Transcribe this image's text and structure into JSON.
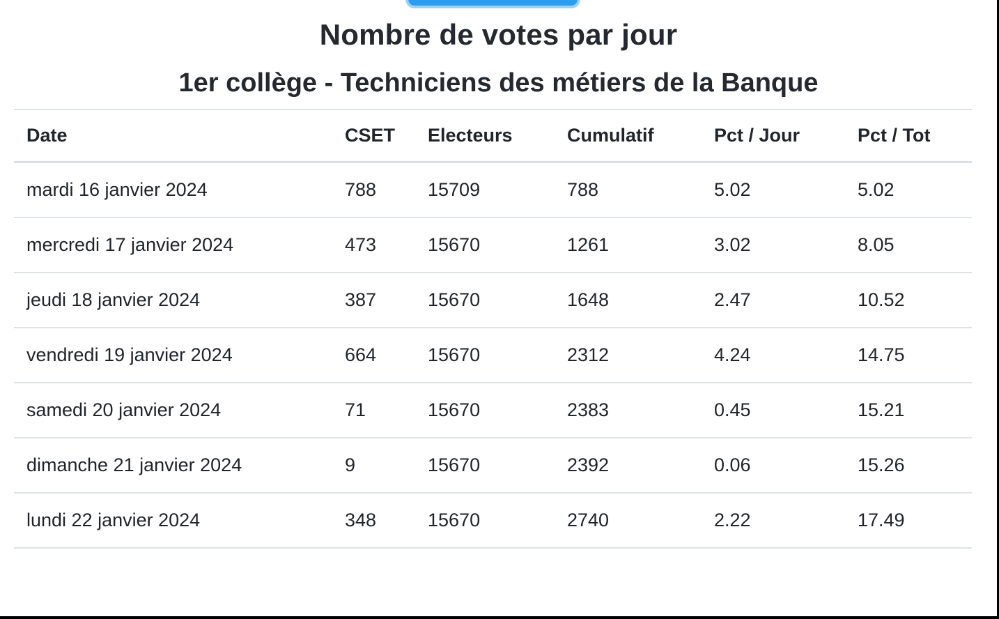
{
  "page": {
    "title": "Nombre de votes par jour",
    "subtitle": "1er collège - Techniciens des métiers de la Banque"
  },
  "colors": {
    "accent_blue": "#2a9df0",
    "focus_ring_blue": "#96d4fa",
    "text": "#212529",
    "divider": "#dee2e6",
    "frame_border": "#000000"
  },
  "table": {
    "columns": [
      "Date",
      "CSET",
      "Electeurs",
      "Cumulatif",
      "Pct / Jour",
      "Pct / Tot"
    ],
    "rows": [
      [
        "mardi 16 janvier 2024",
        "788",
        "15709",
        "788",
        "5.02",
        "5.02"
      ],
      [
        "mercredi 17 janvier 2024",
        "473",
        "15670",
        "1261",
        "3.02",
        "8.05"
      ],
      [
        "jeudi 18 janvier 2024",
        "387",
        "15670",
        "1648",
        "2.47",
        "10.52"
      ],
      [
        "vendredi 19 janvier 2024",
        "664",
        "15670",
        "2312",
        "4.24",
        "14.75"
      ],
      [
        "samedi 20 janvier 2024",
        "71",
        "15670",
        "2383",
        "0.45",
        "15.21"
      ],
      [
        "dimanche 21 janvier 2024",
        "9",
        "15670",
        "2392",
        "0.06",
        "15.26"
      ],
      [
        "lundi 22 janvier 2024",
        "348",
        "15670",
        "2740",
        "2.22",
        "17.49"
      ]
    ]
  }
}
